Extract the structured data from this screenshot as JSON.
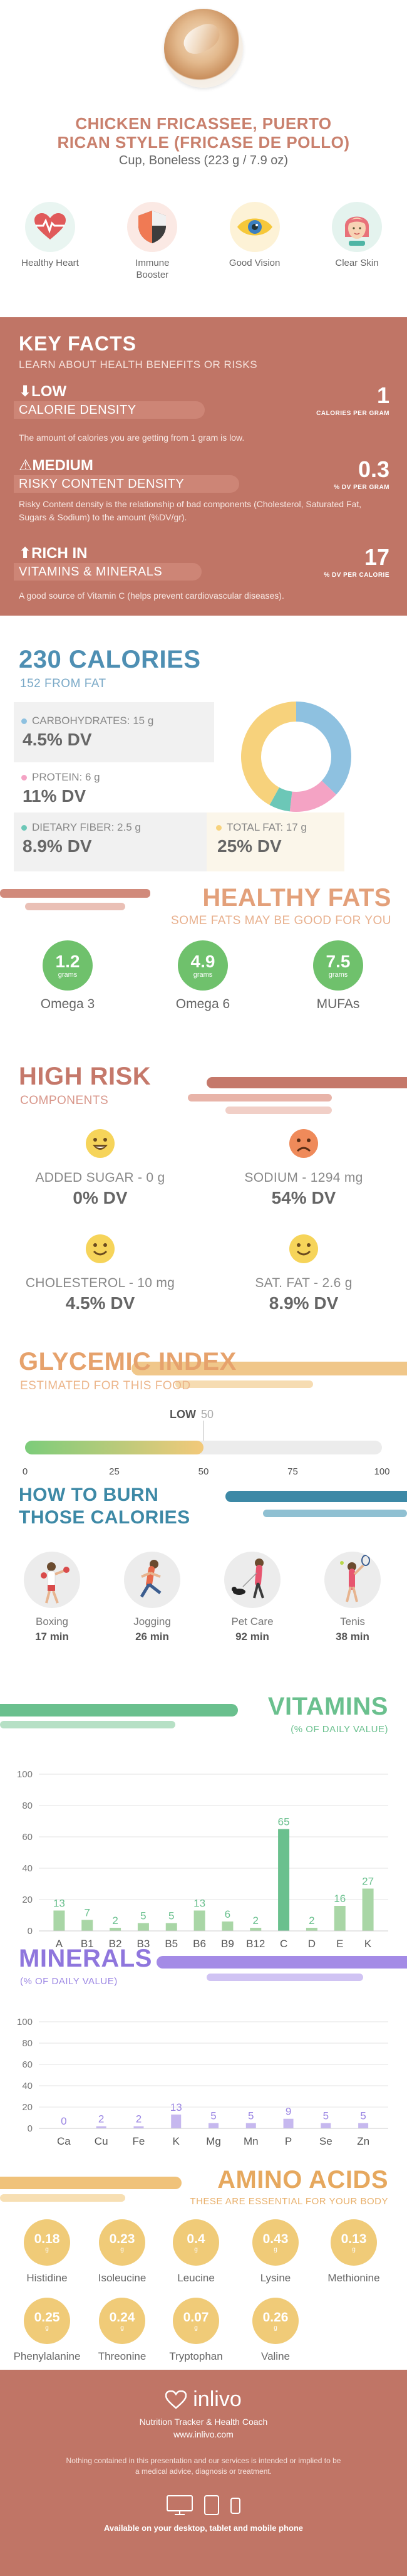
{
  "header": {
    "title_line1": "CHICKEN FRICASSEE, PUERTO",
    "title_line2": "RICAN STYLE (FRICASE DE POLLO)",
    "serving": "Cup, Boneless (223 g / 7.9 oz)",
    "benefits": [
      {
        "label": "Healthy Heart",
        "icon": "heart-pulse-icon"
      },
      {
        "label": "Immune Booster",
        "icon": "shield-icon"
      },
      {
        "label": "Good Vision",
        "icon": "eye-icon"
      },
      {
        "label": "Clear Skin",
        "icon": "face-icon"
      }
    ]
  },
  "key_facts": {
    "title": "KEY FACTS",
    "subtitle": "LEARN ABOUT HEALTH BENEFITS OR RISKS",
    "items": [
      {
        "level": "LOW",
        "name": "CALORIE DENSITY",
        "value": "1",
        "unit": "CALORIES PER GRAM",
        "desc": "The amount of calories you are getting from 1 gram is low."
      },
      {
        "level": "MEDIUM",
        "name": "RISKY CONTENT DENSITY",
        "value": "0.3",
        "unit": "% DV PER GRAM",
        "desc": "Risky Content density is the relationship of bad components (Cholesterol, Saturated Fat, Sugars & Sodium) to the amount (%DV/gr)."
      },
      {
        "level": "RICH  IN",
        "name": "VITAMINS & MINERALS",
        "value": "17",
        "unit": "% DV PER CALORIE",
        "desc": "A good source of Vitamin C (helps prevent cardiovascular diseases)."
      }
    ]
  },
  "calories": {
    "title": "230 CALORIES",
    "subtitle": "152 FROM FAT",
    "macros": [
      {
        "label": "CARBOHYDRATES: 15 g",
        "value": "4.5% DV",
        "color": "#8ec1e0"
      },
      {
        "label": "PROTEIN: 6 g",
        "value": "11% DV",
        "color": "#f4a3c4"
      },
      {
        "label": "DIETARY FIBER: 2.5 g",
        "value": "8.9% DV",
        "color": "#6cc7b7"
      },
      {
        "label": "TOTAL FAT: 17 g",
        "value": "25% DV",
        "color": "#f7d27c"
      }
    ],
    "donut": [
      {
        "name": "Carbohydrates",
        "value": 15,
        "color": "#8ec1e0"
      },
      {
        "name": "Protein",
        "value": 6,
        "color": "#f4a3c4"
      },
      {
        "name": "Dietary Fiber",
        "value": 2.5,
        "color": "#6cc7b7"
      },
      {
        "name": "Total Fat",
        "value": 17,
        "color": "#f7d27c"
      }
    ]
  },
  "healthy_fats": {
    "title": "HEALTHY FATS",
    "subtitle": "SOME FATS MAY BE GOOD FOR YOU",
    "items": [
      {
        "value": "1.2",
        "unit": "grams",
        "name": "Omega 3"
      },
      {
        "value": "4.9",
        "unit": "grams",
        "name": "Omega 6"
      },
      {
        "value": "7.5",
        "unit": "grams",
        "name": "MUFAs"
      }
    ]
  },
  "high_risk": {
    "title": "HIGH RISK",
    "subtitle": "COMPONENTS",
    "items": [
      {
        "name": "ADDED SUGAR - 0 g",
        "value": "0% DV",
        "mood": "happy",
        "color": "#f6d45a"
      },
      {
        "name": "SODIUM - 1294 mg",
        "value": "54% DV",
        "mood": "sad",
        "color": "#ef8a5a"
      },
      {
        "name": "CHOLESTEROL - 10 mg",
        "value": "4.5% DV",
        "mood": "smile",
        "color": "#f6d45a"
      },
      {
        "name": "SAT. FAT - 2.6 g",
        "value": "8.9% DV",
        "mood": "smile",
        "color": "#f6d45a"
      }
    ]
  },
  "glycemic": {
    "title": "GLYCEMIC INDEX",
    "subtitle": "ESTIMATED FOR THIS FOOD",
    "level": "LOW",
    "value": 50,
    "value_label": "50",
    "ticks": [
      "0",
      "25",
      "50",
      "75",
      "100"
    ]
  },
  "burn": {
    "title_line1": "HOW TO BURN",
    "title_line2": "THOSE CALORIES",
    "items": [
      {
        "name": "Boxing",
        "time": "17 min",
        "icon": "boxing-icon"
      },
      {
        "name": "Jogging",
        "time": "26 min",
        "icon": "jogging-icon"
      },
      {
        "name": "Pet Care",
        "time": "92 min",
        "icon": "dog-walking-icon"
      },
      {
        "name": "Tenis",
        "time": "38 min",
        "icon": "tennis-icon"
      }
    ]
  },
  "vitamins": {
    "title": "VITAMINS",
    "subtitle": "(% OF DAILY VALUE)"
  },
  "minerals": {
    "title": "MINERALS",
    "subtitle": "(% OF DAILY VALUE)"
  },
  "chart_data": [
    {
      "type": "bar",
      "title": "VITAMINS",
      "subtitle": "(% OF DAILY VALUE)",
      "categories": [
        "A",
        "B1",
        "B2",
        "B3",
        "B5",
        "B6",
        "B9",
        "B12",
        "C",
        "D",
        "E",
        "K"
      ],
      "values": [
        13,
        7,
        2,
        5,
        5,
        13,
        6,
        2,
        65,
        2,
        16,
        27
      ],
      "ylim": [
        0,
        100
      ],
      "yticks": [
        0,
        20,
        40,
        60,
        80,
        100
      ],
      "grid": true,
      "colors": {
        "bar": "#a9d6a6",
        "highlight": "#6ac08e",
        "label": "#6ac08e"
      }
    },
    {
      "type": "bar",
      "title": "MINERALS",
      "subtitle": "(% OF DAILY VALUE)",
      "categories": [
        "Ca",
        "Cu",
        "Fe",
        "K",
        "Mg",
        "Mn",
        "P",
        "Se",
        "Zn"
      ],
      "values": [
        0,
        2,
        2,
        13,
        5,
        5,
        9,
        5,
        5
      ],
      "ylim": [
        0,
        100
      ],
      "yticks": [
        0,
        20,
        40,
        60,
        80,
        100
      ],
      "grid": true,
      "colors": {
        "bar": "#c6b8ef",
        "label": "#9b86e3"
      }
    }
  ],
  "amino_acids": {
    "title": "AMINO ACIDS",
    "subtitle": "THESE ARE ESSENTIAL FOR YOUR BODY",
    "unit": "g",
    "items": [
      {
        "value": "0.18",
        "name": "Histidine"
      },
      {
        "value": "0.23",
        "name": "Isoleucine"
      },
      {
        "value": "0.4",
        "name": "Leucine"
      },
      {
        "value": "0.43",
        "name": "Lysine"
      },
      {
        "value": "0.13",
        "name": "Methionine"
      },
      {
        "value": "0.25",
        "name": "Phenylalanine"
      },
      {
        "value": "0.24",
        "name": "Threonine"
      },
      {
        "value": "0.07",
        "name": "Tryptophan"
      },
      {
        "value": "0.26",
        "name": "Valine"
      }
    ]
  },
  "footer": {
    "brand": "inlivo",
    "tagline": "Nutrition Tracker & Health Coach",
    "url": "www.inlivo.com",
    "disclaimer": "Nothing contained in this presentation and our services is intended or implied to be a medical advice, diagnosis or treatment.",
    "available": "Available on your desktop, tablet and mobile phone"
  }
}
